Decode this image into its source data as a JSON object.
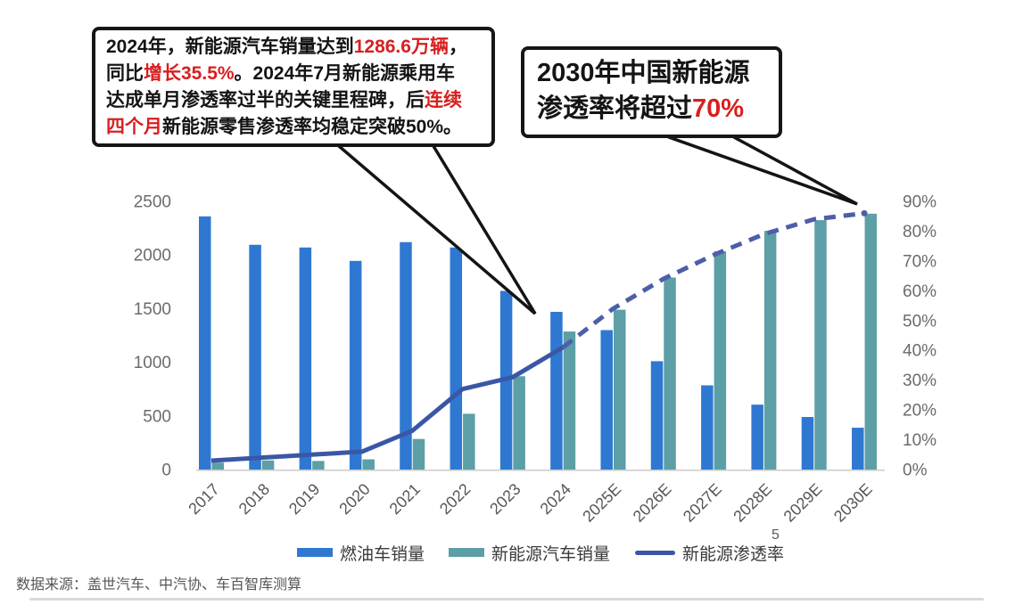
{
  "callouts": {
    "sales_2024": {
      "lines": [
        [
          {
            "t": "2024年，新能源汽车销量达到",
            "c": "black"
          },
          {
            "t": "1286.6万辆",
            "c": "red"
          },
          {
            "t": "，",
            "c": "black"
          }
        ],
        [
          {
            "t": "同比",
            "c": "black"
          },
          {
            "t": "增长35.5%",
            "c": "red"
          },
          {
            "t": "。2024年7月新能源乘用车",
            "c": "black"
          }
        ],
        [
          {
            "t": "达成单月渗透率过半的关键里程碑，后",
            "c": "black"
          },
          {
            "t": "连续",
            "c": "red"
          }
        ],
        [
          {
            "t": "四个月",
            "c": "red"
          },
          {
            "t": "新能源零售渗透率均稳定突破50%。",
            "c": "black"
          }
        ]
      ]
    },
    "penetration_2030": {
      "lines": [
        [
          {
            "t": "2030年中国新能源",
            "c": "black"
          }
        ],
        [
          {
            "t": "渗透率将超过",
            "c": "black"
          },
          {
            "t": "70%",
            "c": "red"
          }
        ]
      ]
    }
  },
  "chart_data": {
    "type": "bar",
    "categories": [
      "2017",
      "2018",
      "2019",
      "2020",
      "2021",
      "2022",
      "2023",
      "2024",
      "2025E",
      "2026E",
      "2027E",
      "2028E",
      "2029E",
      "2030E"
    ],
    "series": [
      {
        "name": "燃油车销量",
        "kind": "bar",
        "color": "#2E78D2",
        "values": [
          2360,
          2095,
          2070,
          1945,
          2120,
          2070,
          1665,
          1470,
          1300,
          1010,
          785,
          605,
          490,
          390
        ]
      },
      {
        "name": "新能源汽车销量",
        "kind": "bar",
        "color": "#5C9FA6",
        "values": [
          65,
          85,
          80,
          95,
          285,
          520,
          870,
          1286.6,
          1490,
          1790,
          2035,
          2225,
          2325,
          2385
        ]
      },
      {
        "name": "新能源渗透率",
        "kind": "line",
        "axis": "right",
        "color": "#3A57A6",
        "dashed_color": "#4D5FA9",
        "solid_until_category": "2024",
        "values_pct": [
          3,
          4,
          5,
          6,
          13,
          27,
          31,
          41,
          54,
          64,
          72,
          79,
          84,
          86
        ]
      }
    ],
    "left_axis": {
      "min": 0,
      "max": 2500,
      "ticks": [
        "0",
        "500",
        "1000",
        "1500",
        "2000",
        "2500"
      ]
    },
    "right_axis": {
      "min": "0%",
      "max": "90%",
      "ticks": [
        "0%",
        "10%",
        "20%",
        "30%",
        "40%",
        "50%",
        "60%",
        "70%",
        "80%",
        "90%"
      ]
    },
    "legend_position": "bottom",
    "grid": "off"
  },
  "accent_colors": {
    "red_highlight": "#d81f1f",
    "callout_border": "#161616"
  },
  "page_number": "5",
  "source_note": "数据来源：盖世汽车、中汽协、车百智库测算"
}
